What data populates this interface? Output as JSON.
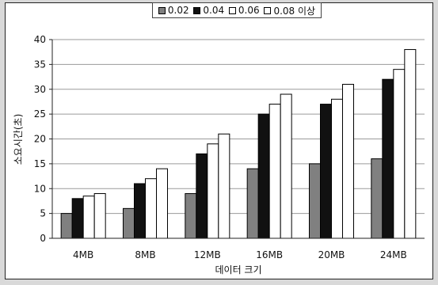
{
  "chart_data": {
    "type": "bar",
    "categories": [
      "4MB",
      "8MB",
      "12MB",
      "16MB",
      "20MB",
      "24MB"
    ],
    "series": [
      {
        "name": "0.02",
        "color": "#808080",
        "values": [
          5,
          6,
          9,
          14,
          15,
          16
        ]
      },
      {
        "name": "0.04",
        "color": "#111111",
        "values": [
          8,
          11,
          17,
          25,
          27,
          32
        ]
      },
      {
        "name": "0.06",
        "color": "#ffffff",
        "values": [
          8.5,
          12,
          19,
          27,
          28,
          34
        ]
      },
      {
        "name": "0.08 이상",
        "color": "#ffffff",
        "values": [
          9,
          14,
          21,
          29,
          31,
          38
        ]
      }
    ],
    "xlabel": "데이터 크기",
    "ylabel": "소요시간(초)",
    "ylim": [
      0,
      40
    ],
    "yticks": [
      0,
      5,
      10,
      15,
      20,
      25,
      30,
      35,
      40
    ],
    "grid": true,
    "legend_position": "top"
  }
}
